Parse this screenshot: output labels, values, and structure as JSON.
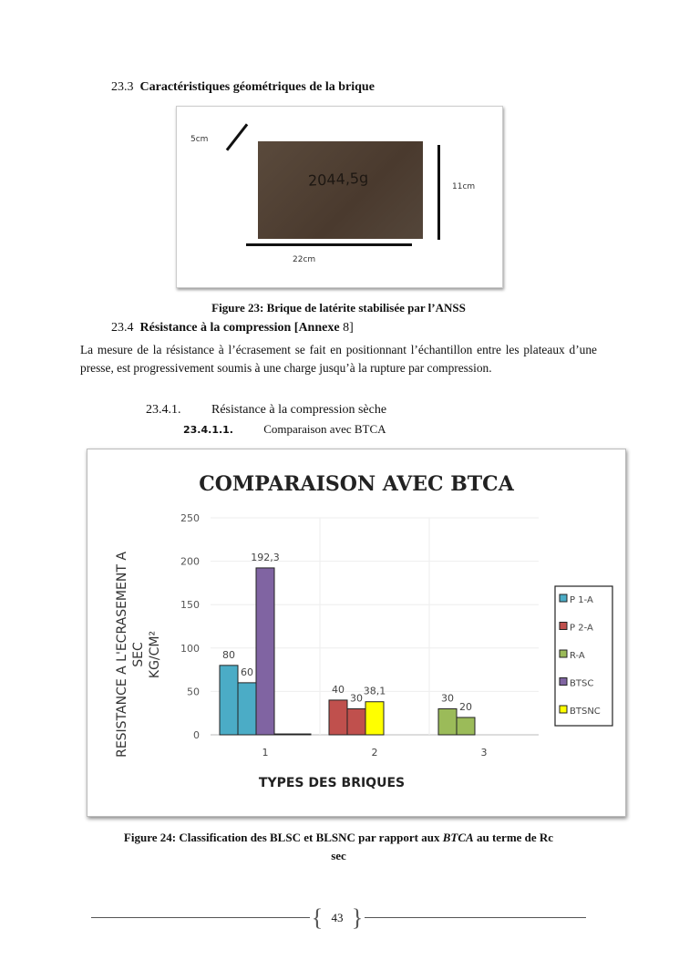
{
  "section_23_3": {
    "number": "23.3",
    "title": "Caractéristiques géométriques de la brique"
  },
  "figure23": {
    "labels": {
      "thickness": "5cm",
      "height": "11cm",
      "length": "22cm",
      "mass_handwritten": "2044,5g"
    },
    "caption": "Figure 23: Brique de latérite stabilisée par l’ANSS"
  },
  "section_23_4": {
    "number": "23.4",
    "title": "Résistance à la compression [Annexe",
    "title_suffix": "8]"
  },
  "paragraph": "La mesure de la résistance à l’écrasement se fait en positionnant l’échantillon entre les plateaux d’une presse, est progressivement soumis à une charge jusqu’à la rupture par compression.",
  "section_23_4_1": {
    "number": "23.4.1.",
    "title": "Résistance à la compression sèche"
  },
  "section_23_4_1_1": {
    "number": "23.4.1.1.",
    "title": "Comparaison avec BTCA"
  },
  "chart_data": {
    "type": "bar",
    "title": "COMPARAISON AVEC BTCA",
    "xlabel": "TYPES DES BRIQUES",
    "ylabel_lines": [
      "RESISTANCE A L'ECRASEMENT A",
      "SEC",
      "KG/CM²"
    ],
    "ylim": [
      0,
      250
    ],
    "yticks": [
      "0",
      "50",
      "100",
      "150",
      "200",
      "250"
    ],
    "categories": [
      "1",
      "2",
      "3"
    ],
    "grid": true,
    "legend_position": "right",
    "legend": [
      {
        "name": "P 1-A",
        "color": "#4bacc6"
      },
      {
        "name": "P 2-A",
        "color": "#c0504d"
      },
      {
        "name": "R-A",
        "color": "#9bbb59"
      },
      {
        "name": "BTSC",
        "color": "#8064a2"
      },
      {
        "name": "BTSNC",
        "color": "#ffff00"
      }
    ],
    "bars": [
      [
        {
          "value": 80,
          "label": "80",
          "color": "#4bacc6"
        },
        {
          "value": 60,
          "label": "60",
          "color": "#4bacc6"
        },
        {
          "value": 192.3,
          "label": "192,3",
          "color": "#8064a2"
        },
        {
          "value": 1,
          "label": "",
          "color": "#444444"
        }
      ],
      [
        {
          "value": 40,
          "label": "40",
          "color": "#c0504d"
        },
        {
          "value": 30,
          "label": "30",
          "color": "#c0504d"
        },
        {
          "value": 38.1,
          "label": "38,1",
          "color": "#ffff00"
        }
      ],
      [
        {
          "value": 30,
          "label": "30",
          "color": "#9bbb59"
        },
        {
          "value": 20,
          "label": "20",
          "color": "#9bbb59"
        }
      ]
    ]
  },
  "figure24": {
    "caption_prefix": "Figure 24: Classification des BLSC et BLSNC par rapport aux ",
    "caption_italic": "BTCA",
    "caption_suffix": " au terme de Rc",
    "caption_line2": "sec"
  },
  "footer": {
    "page_number": "43"
  }
}
